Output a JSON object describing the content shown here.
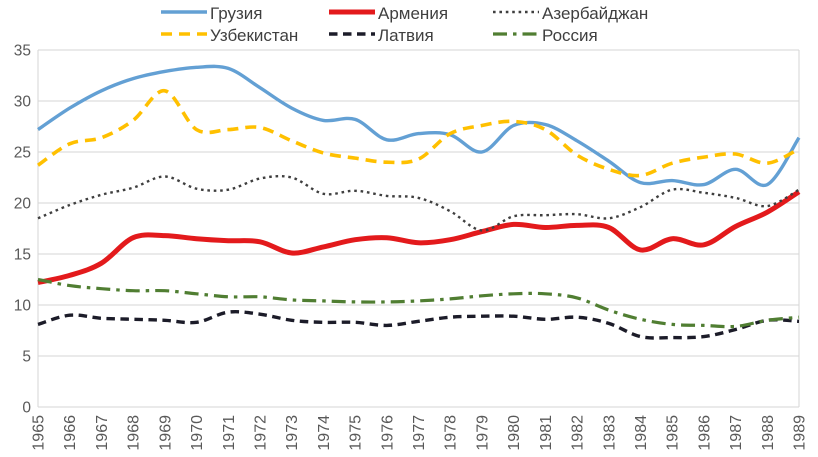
{
  "chart_data": {
    "type": "line",
    "title": "",
    "xlabel": "",
    "ylabel": "",
    "ylim": [
      0,
      35
    ],
    "ytick_step": 5,
    "grid": "horizontal",
    "legend_position": "top",
    "y_tick_labels": [
      "0",
      "5",
      "10",
      "15",
      "20",
      "25",
      "30",
      "35"
    ],
    "x": [
      1965,
      1966,
      1967,
      1968,
      1969,
      1970,
      1971,
      1972,
      1973,
      1974,
      1975,
      1976,
      1977,
      1978,
      1979,
      1980,
      1981,
      1982,
      1983,
      1984,
      1985,
      1986,
      1987,
      1988,
      1989
    ],
    "x_tick_labels": [
      "1965",
      "1966",
      "1967",
      "1968",
      "1969",
      "1970",
      "1971",
      "1972",
      "1973",
      "1974",
      "1975",
      "1976",
      "1977",
      "1978",
      "1979",
      "1980",
      "1981",
      "1982",
      "1983",
      "1984",
      "1985",
      "1986",
      "1987",
      "1988",
      "1989"
    ],
    "series": [
      {
        "name": "Грузия",
        "color": "#63A0D4",
        "line_style": "solid",
        "width": 3.4,
        "values": [
          27.2,
          29.3,
          31.0,
          32.2,
          32.9,
          33.3,
          33.2,
          31.3,
          29.3,
          28.1,
          28.2,
          26.2,
          26.8,
          26.7,
          25.0,
          27.6,
          27.7,
          26.1,
          24.1,
          22.0,
          22.2,
          21.8,
          23.3,
          21.8,
          26.4
        ]
      },
      {
        "name": "Армения",
        "color": "#E31A1C",
        "line_style": "solid",
        "width": 5,
        "values": [
          12.2,
          12.9,
          14.1,
          16.6,
          16.8,
          16.5,
          16.3,
          16.2,
          15.1,
          15.7,
          16.4,
          16.6,
          16.1,
          16.4,
          17.2,
          17.9,
          17.6,
          17.8,
          17.6,
          15.4,
          16.5,
          15.9,
          17.7,
          19.1,
          21.1
        ]
      },
      {
        "name": "Азербайджан",
        "color": "#3F3F3F",
        "line_style": "dotted",
        "width": 2.4,
        "values": [
          18.5,
          19.8,
          20.8,
          21.5,
          22.6,
          21.4,
          21.3,
          22.4,
          22.5,
          20.9,
          21.2,
          20.7,
          20.5,
          19.2,
          17.3,
          18.7,
          18.8,
          18.9,
          18.5,
          19.6,
          21.3,
          21.0,
          20.5,
          19.7,
          21.3
        ]
      },
      {
        "name": "Узбекистан",
        "color": "#FFC000",
        "line_style": "dashed",
        "width": 3.6,
        "values": [
          23.7,
          25.8,
          26.4,
          28.1,
          31.0,
          27.2,
          27.2,
          27.4,
          26.1,
          24.9,
          24.4,
          24.0,
          24.3,
          26.8,
          27.6,
          28.0,
          27.2,
          24.7,
          23.3,
          22.7,
          23.9,
          24.5,
          24.8,
          23.9,
          25.3
        ]
      },
      {
        "name": "Латвия",
        "color": "#1C1C29",
        "line_style": "dashed-short",
        "width": 3.4,
        "values": [
          8.1,
          9.0,
          8.7,
          8.6,
          8.5,
          8.3,
          9.3,
          9.1,
          8.5,
          8.3,
          8.3,
          8.0,
          8.4,
          8.8,
          8.9,
          8.9,
          8.6,
          8.8,
          8.2,
          6.9,
          6.8,
          6.9,
          7.6,
          8.5,
          8.4
        ]
      },
      {
        "name": "Россия",
        "color": "#507E32",
        "line_style": "dash-dot",
        "width": 3.2,
        "values": [
          12.5,
          11.9,
          11.6,
          11.4,
          11.4,
          11.1,
          10.8,
          10.8,
          10.5,
          10.4,
          10.3,
          10.3,
          10.4,
          10.6,
          10.9,
          11.1,
          11.1,
          10.7,
          9.5,
          8.6,
          8.1,
          8.0,
          7.9,
          8.5,
          8.8
        ]
      }
    ],
    "colors": {
      "gridline": "#D6D6D6",
      "tick_text": "#595959",
      "legend_text": "#3F3F3F"
    }
  }
}
